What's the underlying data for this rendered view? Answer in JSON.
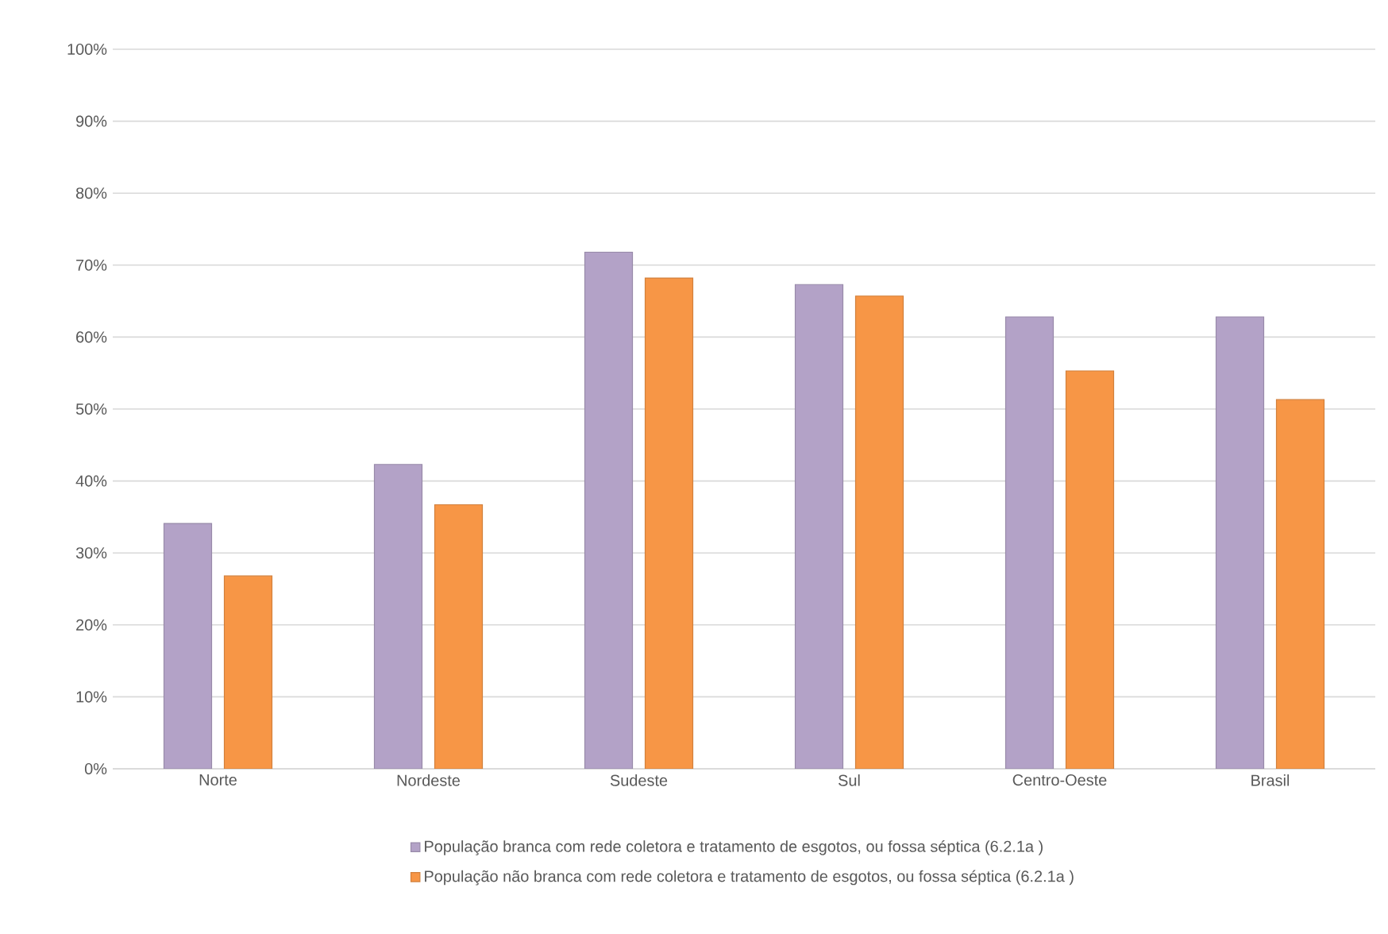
{
  "chart_data": {
    "type": "bar",
    "categories": [
      "Norte",
      "Nordeste",
      "Sudeste",
      "Sul",
      "Centro-Oeste",
      "Brasil"
    ],
    "series": [
      {
        "name": "População branca com rede coletora e tratamento de esgotos, ou fossa séptica (6.2.1a )",
        "color": "#b3a2c7",
        "values": [
          34.1,
          42.3,
          71.8,
          67.3,
          62.8,
          62.8
        ]
      },
      {
        "name": "População não branca com rede coletora e tratamento de esgotos, ou fossa séptica (6.2.1a )",
        "color": "#f79646",
        "values": [
          26.8,
          36.7,
          68.2,
          65.7,
          55.3,
          51.3
        ]
      }
    ],
    "ylim": [
      0,
      100
    ],
    "yticks": [
      {
        "value": 0,
        "label": "0%"
      },
      {
        "value": 10,
        "label": "10%"
      },
      {
        "value": 20,
        "label": "20%"
      },
      {
        "value": 30,
        "label": "30%"
      },
      {
        "value": 40,
        "label": "40%"
      },
      {
        "value": 50,
        "label": "50%"
      },
      {
        "value": 60,
        "label": "60%"
      },
      {
        "value": 70,
        "label": "70%"
      },
      {
        "value": 80,
        "label": "80%"
      },
      {
        "value": 90,
        "label": "90%"
      },
      {
        "value": 100,
        "label": "100%"
      }
    ],
    "grid": "y",
    "legend": "bottom"
  }
}
